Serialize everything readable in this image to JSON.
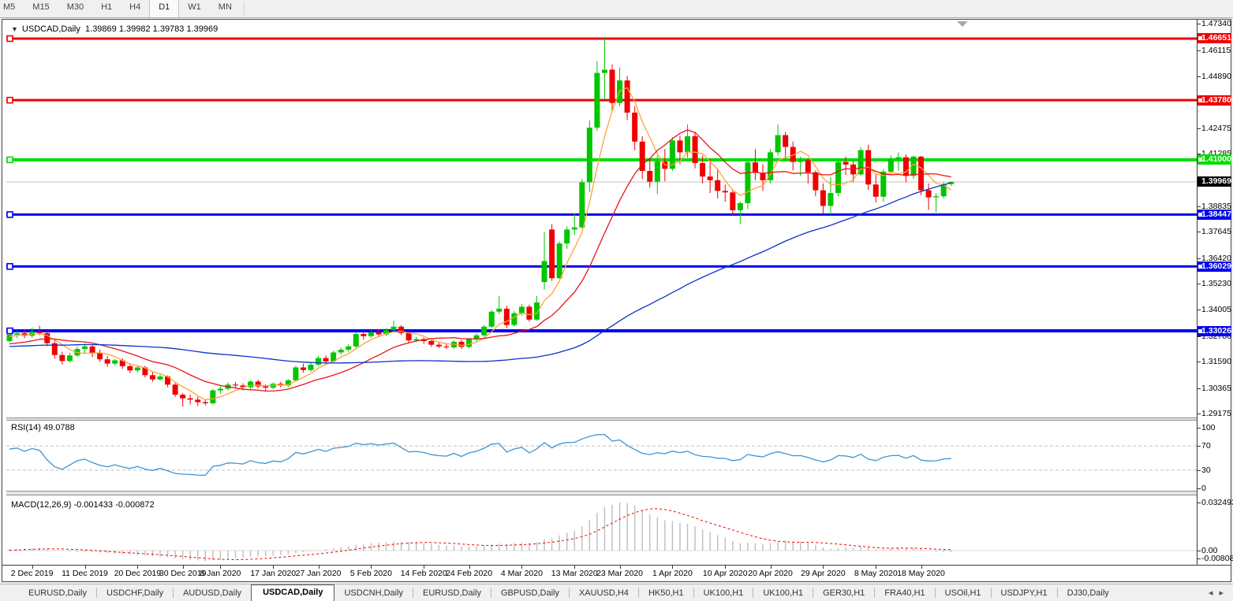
{
  "toolbar": {
    "items": [
      "M5",
      "M15",
      "M30",
      "H1",
      "H4",
      "D1",
      "W1",
      "MN"
    ],
    "active": "D1"
  },
  "title": {
    "symbol": "USDCAD,Daily",
    "ohlc": "1.39869 1.39982 1.39783 1.39969"
  },
  "icons": {
    "title_collapse": "▼",
    "tab_scroll_left": "◂",
    "tab_scroll_right": "▸"
  },
  "tabs": {
    "items": [
      "EURUSD,Daily",
      "USDCHF,Daily",
      "AUDUSD,Daily",
      "USDCAD,Daily",
      "USDCNH,Daily",
      "EURUSD,Daily",
      "GBPUSD,Daily",
      "XAUUSD,H4",
      "HK50,H1",
      "UK100,H1",
      "UK100,H1",
      "GER30,H1",
      "FRA40,H1",
      "USOil,H1",
      "USDJPY,H1",
      "DJ30,Daily"
    ],
    "active_index": 3
  },
  "chart_data": {
    "type": "candlestick",
    "symbol": "USDCAD",
    "timeframe": "Daily",
    "current_bar": {
      "open": 1.39869,
      "high": 1.39982,
      "low": 1.39783,
      "close": 1.39969
    },
    "y_axis_ticks": [
      "1.47340",
      "1.46115",
      "1.44890",
      "1.42475",
      "1.41285",
      "1.38835",
      "1.37645",
      "1.36420",
      "1.35230",
      "1.34005",
      "1.32780",
      "1.31590",
      "1.30365",
      "1.29175"
    ],
    "x_tick_labels": [
      {
        "label": "2 Dec 2019",
        "candle_index": 3
      },
      {
        "label": "11 Dec 2019",
        "candle_index": 10
      },
      {
        "label": "20 Dec 2019",
        "candle_index": 17
      },
      {
        "label": "30 Dec 2019",
        "candle_index": 23
      },
      {
        "label": "8 Jan 2020",
        "candle_index": 28
      },
      {
        "label": "17 Jan 2020",
        "candle_index": 35
      },
      {
        "label": "27 Jan 2020",
        "candle_index": 41
      },
      {
        "label": "5 Feb 2020",
        "candle_index": 48
      },
      {
        "label": "14 Feb 2020",
        "candle_index": 55
      },
      {
        "label": "24 Feb 2020",
        "candle_index": 61
      },
      {
        "label": "4 Mar 2020",
        "candle_index": 68
      },
      {
        "label": "13 Mar 2020",
        "candle_index": 75
      },
      {
        "label": "23 Mar 2020",
        "candle_index": 81
      },
      {
        "label": "1 Apr 2020",
        "candle_index": 88
      },
      {
        "label": "10 Apr 2020",
        "candle_index": 95
      },
      {
        "label": "20 Apr 2020",
        "candle_index": 101
      },
      {
        "label": "29 Apr 2020",
        "candle_index": 108
      },
      {
        "label": "8 May 2020",
        "candle_index": 115
      },
      {
        "label": "18 May 2020",
        "candle_index": 121
      }
    ],
    "horizontal_lines": [
      {
        "label": "1.46651",
        "price": 1.46651,
        "color": "#f00000",
        "width": 3
      },
      {
        "label": "1.43780",
        "price": 1.4378,
        "color": "#f00000",
        "width": 3
      },
      {
        "label": "1.41000",
        "price": 1.41,
        "color": "#00dc00",
        "width": 4
      },
      {
        "label": "1.38447",
        "price": 1.38447,
        "color": "#0000f0",
        "width": 3
      },
      {
        "label": "1.36029",
        "price": 1.36029,
        "color": "#0000f0",
        "width": 3
      },
      {
        "label": "1.33026",
        "price": 1.33026,
        "color": "#0000f0",
        "width": 4
      }
    ],
    "current_price": {
      "label": "1.39969",
      "price": 1.39969,
      "badge_color": "#000000",
      "line_color": "#c0c0c0"
    },
    "colors": {
      "bull": "#00c600",
      "bear": "#f00000",
      "background": "#ffffff"
    },
    "moving_averages": [
      {
        "period": 5,
        "color": "#ffa335"
      },
      {
        "period": 14,
        "color": "#e81414"
      },
      {
        "period": 60,
        "color": "#0a32cd"
      }
    ],
    "rsi": {
      "label": "RSI(14) 49.0788",
      "period": 14,
      "value": 49.0788,
      "levels": [
        70,
        30
      ],
      "scale_ticks": [
        "100",
        "70",
        "30",
        "0"
      ],
      "line_color": "#3c96d2"
    },
    "macd": {
      "label": "MACD(12,26,9) -0.001433 -0.000872",
      "fast": 12,
      "slow": 26,
      "signal": 9,
      "value": -0.001433,
      "signal_value": -0.000872,
      "scale_ticks": [
        "0.032493",
        "0.00",
        "-0.008086"
      ],
      "hist_color": "#bdbdbd",
      "signal_color": "#f00000"
    },
    "history_seed_closes": [
      1.3185,
      1.3198,
      1.321,
      1.3222,
      1.3205,
      1.3192,
      1.3178,
      1.3165,
      1.3152,
      1.316,
      1.3175,
      1.319,
      1.3205,
      1.3218,
      1.323,
      1.3242,
      1.3228,
      1.3215,
      1.3202,
      1.3188,
      1.3195,
      1.321,
      1.3225,
      1.324,
      1.3255,
      1.3268,
      1.3255,
      1.3242,
      1.3228,
      1.3215,
      1.3225,
      1.324,
      1.3255,
      1.327,
      1.3285,
      1.3298,
      1.331,
      1.3295,
      1.328,
      1.3265,
      1.3252,
      1.3238,
      1.3225,
      1.3212,
      1.32,
      1.321,
      1.3222,
      1.3235,
      1.3222,
      1.321,
      1.3198,
      1.3205,
      1.3215,
      1.3228,
      1.324,
      1.3252,
      1.3261,
      1.327,
      1.3278,
      1.3285
    ],
    "candles_ohlc": [
      [
        1.3255,
        1.329,
        1.3248,
        1.3285
      ],
      [
        1.3285,
        1.33,
        1.327,
        1.3292
      ],
      [
        1.3292,
        1.331,
        1.3268,
        1.328
      ],
      [
        1.328,
        1.3318,
        1.327,
        1.3299
      ],
      [
        1.3299,
        1.3327,
        1.3282,
        1.3292
      ],
      [
        1.3292,
        1.33,
        1.3232,
        1.3245
      ],
      [
        1.3245,
        1.326,
        1.3172,
        1.319
      ],
      [
        1.319,
        1.3205,
        1.3145,
        1.3162
      ],
      [
        1.3162,
        1.32,
        1.3155,
        1.3188
      ],
      [
        1.3188,
        1.323,
        1.318,
        1.3218
      ],
      [
        1.3218,
        1.3245,
        1.3195,
        1.323
      ],
      [
        1.323,
        1.3238,
        1.318,
        1.3198
      ],
      [
        1.3198,
        1.3215,
        1.3158,
        1.317
      ],
      [
        1.317,
        1.3185,
        1.3135,
        1.315
      ],
      [
        1.315,
        1.3172,
        1.314,
        1.3165
      ],
      [
        1.3165,
        1.3175,
        1.3125,
        1.3138
      ],
      [
        1.3138,
        1.315,
        1.3105,
        1.3118
      ],
      [
        1.3118,
        1.314,
        1.311,
        1.3132
      ],
      [
        1.3132,
        1.314,
        1.3085,
        1.3096
      ],
      [
        1.3096,
        1.311,
        1.3065,
        1.3076
      ],
      [
        1.3076,
        1.3098,
        1.307,
        1.309
      ],
      [
        1.309,
        1.3095,
        1.304,
        1.3052
      ],
      [
        1.3052,
        1.306,
        1.2995,
        1.3005
      ],
      [
        1.3005,
        1.3012,
        1.295,
        1.2988
      ],
      [
        1.2988,
        1.3005,
        1.296,
        1.2982
      ],
      [
        1.2982,
        1.2995,
        1.2952,
        1.297
      ],
      [
        1.297,
        1.2985,
        1.2955,
        1.2965
      ],
      [
        1.2965,
        1.3032,
        1.296,
        1.3025
      ],
      [
        1.3025,
        1.3045,
        1.301,
        1.3033
      ],
      [
        1.3033,
        1.3062,
        1.3025,
        1.3052
      ],
      [
        1.3052,
        1.3065,
        1.3035,
        1.3048
      ],
      [
        1.3048,
        1.3058,
        1.3025,
        1.304
      ],
      [
        1.304,
        1.3072,
        1.3032,
        1.3066
      ],
      [
        1.3066,
        1.3075,
        1.3035,
        1.3044
      ],
      [
        1.3044,
        1.3052,
        1.3022,
        1.3038
      ],
      [
        1.3038,
        1.3062,
        1.303,
        1.3056
      ],
      [
        1.3056,
        1.3065,
        1.3038,
        1.3048
      ],
      [
        1.3048,
        1.3078,
        1.304,
        1.3072
      ],
      [
        1.3072,
        1.314,
        1.3065,
        1.3132
      ],
      [
        1.3132,
        1.315,
        1.3108,
        1.312
      ],
      [
        1.312,
        1.3155,
        1.3112,
        1.3145
      ],
      [
        1.3145,
        1.3185,
        1.3138,
        1.3176
      ],
      [
        1.3176,
        1.3188,
        1.3148,
        1.316
      ],
      [
        1.316,
        1.321,
        1.3155,
        1.3202
      ],
      [
        1.3202,
        1.3225,
        1.319,
        1.3215
      ],
      [
        1.3215,
        1.324,
        1.3205,
        1.323
      ],
      [
        1.323,
        1.3295,
        1.3222,
        1.3288
      ],
      [
        1.3288,
        1.3302,
        1.3262,
        1.3278
      ],
      [
        1.3278,
        1.3305,
        1.327,
        1.3296
      ],
      [
        1.3296,
        1.331,
        1.3275,
        1.3286
      ],
      [
        1.3286,
        1.3315,
        1.3278,
        1.3306
      ],
      [
        1.3306,
        1.335,
        1.3298,
        1.3322
      ],
      [
        1.3322,
        1.333,
        1.3282,
        1.3292
      ],
      [
        1.3292,
        1.33,
        1.3248,
        1.3258
      ],
      [
        1.3258,
        1.3275,
        1.325,
        1.3264
      ],
      [
        1.3264,
        1.3272,
        1.3242,
        1.3255
      ],
      [
        1.3255,
        1.3262,
        1.3228,
        1.3238
      ],
      [
        1.3238,
        1.325,
        1.3222,
        1.323
      ],
      [
        1.323,
        1.3245,
        1.3218,
        1.3226
      ],
      [
        1.3226,
        1.3258,
        1.322,
        1.3252
      ],
      [
        1.3252,
        1.326,
        1.3218,
        1.3228
      ],
      [
        1.3228,
        1.327,
        1.322,
        1.3264
      ],
      [
        1.3264,
        1.3292,
        1.3255,
        1.3282
      ],
      [
        1.3282,
        1.333,
        1.3275,
        1.3322
      ],
      [
        1.3322,
        1.34,
        1.3315,
        1.3392
      ],
      [
        1.3392,
        1.3464,
        1.338,
        1.3406
      ],
      [
        1.3406,
        1.342,
        1.3315,
        1.333
      ],
      [
        1.333,
        1.3395,
        1.3322,
        1.3385
      ],
      [
        1.3385,
        1.3428,
        1.3375,
        1.3415
      ],
      [
        1.3415,
        1.3425,
        1.3345,
        1.3355
      ],
      [
        1.3355,
        1.3465,
        1.335,
        1.3435
      ],
      [
        1.353,
        1.3762,
        1.3495,
        1.3628
      ],
      [
        1.3775,
        1.38,
        1.3535,
        1.3548
      ],
      [
        1.3548,
        1.372,
        1.3545,
        1.371
      ],
      [
        1.371,
        1.379,
        1.3685,
        1.3775
      ],
      [
        1.3775,
        1.385,
        1.375,
        1.3785
      ],
      [
        1.3785,
        1.401,
        1.378,
        1.3995
      ],
      [
        1.3995,
        1.4285,
        1.395,
        1.425
      ],
      [
        1.425,
        1.456,
        1.4235,
        1.4505
      ],
      [
        1.4505,
        1.4668,
        1.438,
        1.452
      ],
      [
        1.452,
        1.4545,
        1.433,
        1.4365
      ],
      [
        1.4365,
        1.453,
        1.435,
        1.447
      ],
      [
        1.447,
        1.449,
        1.4285,
        1.432
      ],
      [
        1.432,
        1.435,
        1.4145,
        1.4185
      ],
      [
        1.4185,
        1.421,
        1.401,
        1.4048
      ],
      [
        1.4048,
        1.4105,
        1.397,
        1.3998
      ],
      [
        1.3998,
        1.412,
        1.394,
        1.4092
      ],
      [
        1.4092,
        1.415,
        1.4,
        1.4058
      ],
      [
        1.4058,
        1.4205,
        1.4048,
        1.419
      ],
      [
        1.419,
        1.421,
        1.408,
        1.4135
      ],
      [
        1.4135,
        1.4265,
        1.411,
        1.421
      ],
      [
        1.421,
        1.423,
        1.406,
        1.4085
      ],
      [
        1.4085,
        1.412,
        1.399,
        1.4022
      ],
      [
        1.4022,
        1.4105,
        1.3945,
        1.4005
      ],
      [
        1.4005,
        1.406,
        1.392,
        1.3955
      ],
      [
        1.3955,
        1.3985,
        1.3905,
        1.3948
      ],
      [
        1.3948,
        1.396,
        1.3838,
        1.3865
      ],
      [
        1.3865,
        1.3905,
        1.38,
        1.3898
      ],
      [
        1.3898,
        1.4105,
        1.387,
        1.4088
      ],
      [
        1.4088,
        1.415,
        1.4005,
        1.404
      ],
      [
        1.404,
        1.408,
        1.3955,
        1.4005
      ],
      [
        1.4005,
        1.415,
        1.399,
        1.4135
      ],
      [
        1.4135,
        1.4265,
        1.412,
        1.4215
      ],
      [
        1.4215,
        1.423,
        1.4105,
        1.416
      ],
      [
        1.416,
        1.4185,
        1.405,
        1.409
      ],
      [
        1.409,
        1.4115,
        1.4025,
        1.4098
      ],
      [
        1.4098,
        1.4105,
        1.399,
        1.4042
      ],
      [
        1.4042,
        1.405,
        1.393,
        1.3958
      ],
      [
        1.3958,
        1.399,
        1.385,
        1.3885
      ],
      [
        1.3885,
        1.402,
        1.3845,
        1.3945
      ],
      [
        1.3945,
        1.4105,
        1.393,
        1.409
      ],
      [
        1.409,
        1.4115,
        1.403,
        1.4078
      ],
      [
        1.4078,
        1.4095,
        1.3995,
        1.4032
      ],
      [
        1.4032,
        1.416,
        1.4025,
        1.4145
      ],
      [
        1.4145,
        1.417,
        1.396,
        1.3985
      ],
      [
        1.3985,
        1.4035,
        1.39,
        1.3928
      ],
      [
        1.3928,
        1.4055,
        1.3905,
        1.4045
      ],
      [
        1.4045,
        1.412,
        1.4035,
        1.4105
      ],
      [
        1.4105,
        1.4135,
        1.405,
        1.4112
      ],
      [
        1.4112,
        1.4125,
        1.3995,
        1.4025
      ],
      [
        1.4025,
        1.412,
        1.401,
        1.4115
      ],
      [
        1.4115,
        1.4118,
        1.3935,
        1.3958
      ],
      [
        1.3958,
        1.399,
        1.3866,
        1.3925
      ],
      [
        1.3925,
        1.3945,
        1.3855,
        1.393
      ],
      [
        1.393,
        1.3995,
        1.392,
        1.3987
      ],
      [
        1.39869,
        1.39982,
        1.39783,
        1.39969
      ]
    ]
  }
}
